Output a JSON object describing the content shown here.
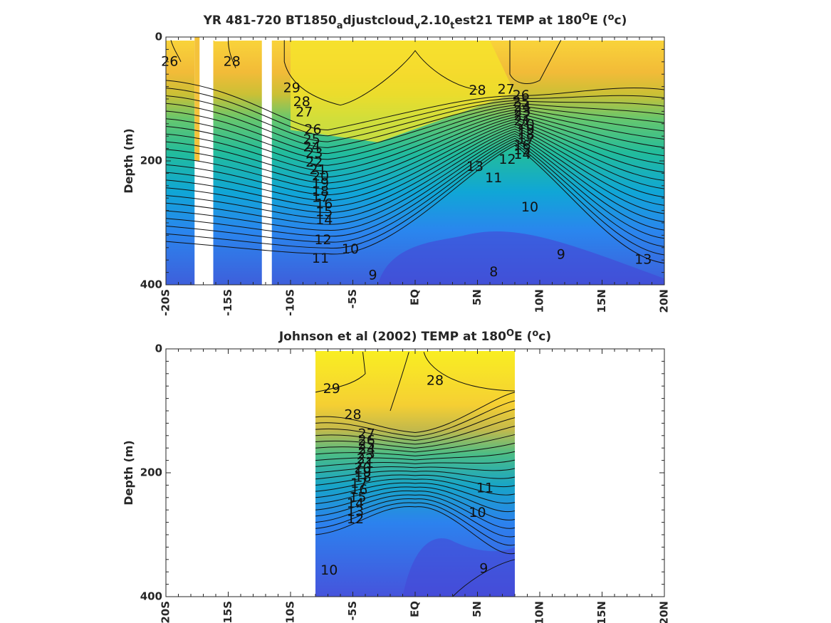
{
  "chart_data": [
    {
      "type": "heatmap",
      "title_parts": [
        "YR 481-720 BT1850",
        "a",
        "djustcloud",
        "v",
        "2.10",
        "t",
        "est21 TEMP at 180",
        "O",
        "E (",
        "o",
        "c)"
      ],
      "xlabel": "",
      "ylabel": "Depth (m)",
      "x_ticks": [
        "-20S",
        "-15S",
        "-10S",
        "-5S",
        "EQ",
        "5N",
        "10N",
        "15N",
        "20N"
      ],
      "y_ticks": [
        "0",
        "200",
        "400"
      ],
      "xlim": [
        -20,
        20
      ],
      "ylim": [
        0,
        400
      ],
      "y_reversed": true,
      "grid": false,
      "colormap": "parula",
      "clim": [
        6,
        30
      ],
      "gaps_lat": [
        [
          -17.7,
          -16.2
        ],
        [
          -12.3,
          -11.5
        ]
      ],
      "contour_labels": [
        {
          "v": "26",
          "lat": -19.7,
          "d": 40
        },
        {
          "v": "28",
          "lat": -14.7,
          "d": 40
        },
        {
          "v": "29",
          "lat": -9.9,
          "d": 83
        },
        {
          "v": "28",
          "lat": -9.1,
          "d": 105
        },
        {
          "v": "27",
          "lat": -8.9,
          "d": 122
        },
        {
          "v": "26",
          "lat": -8.2,
          "d": 150
        },
        {
          "v": "25",
          "lat": -8.3,
          "d": 166
        },
        {
          "v": "24",
          "lat": -8.3,
          "d": 178
        },
        {
          "v": "23",
          "lat": -8.1,
          "d": 188
        },
        {
          "v": "22",
          "lat": -8.1,
          "d": 203
        },
        {
          "v": "21",
          "lat": -7.8,
          "d": 215
        },
        {
          "v": "20",
          "lat": -7.6,
          "d": 225
        },
        {
          "v": "19",
          "lat": -7.6,
          "d": 237
        },
        {
          "v": "18",
          "lat": -7.6,
          "d": 250
        },
        {
          "v": "17",
          "lat": -7.6,
          "d": 260
        },
        {
          "v": "16",
          "lat": -7.3,
          "d": 270
        },
        {
          "v": "15",
          "lat": -7.3,
          "d": 283
        },
        {
          "v": "14",
          "lat": -7.3,
          "d": 296
        },
        {
          "v": "13",
          "lat": 4.8,
          "d": 210
        },
        {
          "v": "12",
          "lat": 7.4,
          "d": 198
        },
        {
          "v": "11",
          "lat": 6.3,
          "d": 228
        },
        {
          "v": "10",
          "lat": 9.2,
          "d": 275
        },
        {
          "v": "9",
          "lat": 11.7,
          "d": 352
        },
        {
          "v": "13",
          "lat": 18.3,
          "d": 360
        },
        {
          "v": "12",
          "lat": -7.4,
          "d": 328
        },
        {
          "v": "11",
          "lat": -7.6,
          "d": 358
        },
        {
          "v": "10",
          "lat": -5.2,
          "d": 343
        },
        {
          "v": "9",
          "lat": -3.4,
          "d": 385
        },
        {
          "v": "8",
          "lat": 6.3,
          "d": 380
        },
        {
          "v": "28",
          "lat": 5.0,
          "d": 87
        },
        {
          "v": "27",
          "lat": 7.3,
          "d": 85
        },
        {
          "v": "26",
          "lat": 8.5,
          "d": 95
        },
        {
          "v": "25",
          "lat": 8.5,
          "d": 105
        },
        {
          "v": "24",
          "lat": 8.6,
          "d": 113
        },
        {
          "v": "23",
          "lat": 8.6,
          "d": 120
        },
        {
          "v": "22",
          "lat": 8.6,
          "d": 128
        },
        {
          "v": "21",
          "lat": 8.6,
          "d": 136
        },
        {
          "v": "20",
          "lat": 8.9,
          "d": 142
        },
        {
          "v": "19",
          "lat": 8.9,
          "d": 150
        },
        {
          "v": "18",
          "lat": 8.9,
          "d": 158
        },
        {
          "v": "17",
          "lat": 8.9,
          "d": 166
        },
        {
          "v": "16",
          "lat": 8.6,
          "d": 175
        },
        {
          "v": "15",
          "lat": 8.6,
          "d": 183
        },
        {
          "v": "14",
          "lat": 8.6,
          "d": 190
        }
      ]
    },
    {
      "type": "heatmap",
      "title_parts": [
        "Johnson et al (2002) TEMP at 180",
        "O",
        "E (",
        "o",
        "c)"
      ],
      "xlabel": "",
      "ylabel": "Depth (m)",
      "x_ticks": [
        "-20S",
        "-15S",
        "-10S",
        "-5S",
        "EQ",
        "5N",
        "10N",
        "15N",
        "20N"
      ],
      "y_ticks": [
        "0",
        "200",
        "400"
      ],
      "xlim": [
        -20,
        20
      ],
      "ylim": [
        0,
        400
      ],
      "y_reversed": true,
      "grid": false,
      "colormap": "parula",
      "clim": [
        6,
        30
      ],
      "data_lat_range": [
        -8,
        8
      ],
      "contour_labels": [
        {
          "v": "29",
          "lat": -6.7,
          "d": 65
        },
        {
          "v": "28",
          "lat": 1.6,
          "d": 52
        },
        {
          "v": "28",
          "lat": -5.0,
          "d": 107
        },
        {
          "v": "27",
          "lat": -3.9,
          "d": 138
        },
        {
          "v": "26",
          "lat": -3.9,
          "d": 148
        },
        {
          "v": "25",
          "lat": -3.9,
          "d": 155
        },
        {
          "v": "24",
          "lat": -3.9,
          "d": 163
        },
        {
          "v": "23",
          "lat": -3.9,
          "d": 170
        },
        {
          "v": "22",
          "lat": -4.0,
          "d": 178
        },
        {
          "v": "21",
          "lat": -4.0,
          "d": 185
        },
        {
          "v": "20",
          "lat": -4.2,
          "d": 193
        },
        {
          "v": "19",
          "lat": -4.2,
          "d": 200
        },
        {
          "v": "18",
          "lat": -4.2,
          "d": 208
        },
        {
          "v": "17",
          "lat": -4.5,
          "d": 218
        },
        {
          "v": "16",
          "lat": -4.5,
          "d": 228
        },
        {
          "v": "15",
          "lat": -4.6,
          "d": 240
        },
        {
          "v": "14",
          "lat": -4.8,
          "d": 250
        },
        {
          "v": "13",
          "lat": -4.8,
          "d": 263
        },
        {
          "v": "12",
          "lat": -4.8,
          "d": 275
        },
        {
          "v": "11",
          "lat": 5.6,
          "d": 225
        },
        {
          "v": "10",
          "lat": 5.0,
          "d": 265
        },
        {
          "v": "10",
          "lat": -6.9,
          "d": 358
        },
        {
          "v": "9",
          "lat": 5.5,
          "d": 355
        }
      ]
    }
  ]
}
